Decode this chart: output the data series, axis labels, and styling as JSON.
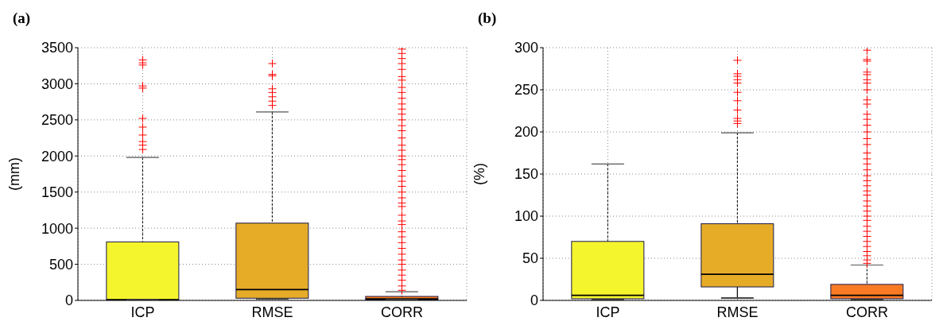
{
  "chart_data": [
    {
      "type": "box",
      "title": "(a)",
      "ylabel": "(mm)",
      "categories": [
        "ICP",
        "RMSE",
        "CORR"
      ],
      "colors": [
        "#f5f52e",
        "#e6ac28",
        "#fb7b24"
      ],
      "ylim": [
        0,
        3500
      ],
      "yticks": [
        0,
        500,
        1000,
        1500,
        2000,
        2500,
        3000,
        3500
      ],
      "grid": true,
      "marker": "cross",
      "boxes": [
        {
          "low": 0,
          "q1": 5,
          "median": 10,
          "q3": 810,
          "high": 1980,
          "outliers": [
            2090,
            2150,
            2200,
            2290,
            2400,
            2520,
            2940,
            2970,
            3260,
            3290,
            3330
          ]
        },
        {
          "low": 10,
          "q1": 30,
          "median": 150,
          "q3": 1070,
          "high": 2610,
          "outliers": [
            2700,
            2760,
            2820,
            2880,
            2930,
            3110,
            3130,
            3280
          ]
        },
        {
          "low": 0,
          "q1": 5,
          "median": 20,
          "q3": 55,
          "high": 120,
          "outliers": [
            140,
            200,
            280,
            350,
            420,
            500,
            560,
            640,
            720,
            800,
            880,
            950,
            1050,
            1100,
            1180,
            1300,
            1350,
            1420,
            1500,
            1580,
            1650,
            1720,
            1800,
            1880,
            1950,
            2000,
            2080,
            2150,
            2250,
            2350,
            2420,
            2500,
            2580,
            2650,
            2720,
            2800,
            2880,
            2950,
            3050,
            3100,
            3200,
            3280,
            3350,
            3420,
            3480
          ]
        }
      ]
    },
    {
      "type": "box",
      "title": "(b)",
      "ylabel": "(%)",
      "categories": [
        "ICP",
        "RMSE",
        "CORR"
      ],
      "colors": [
        "#f5f52e",
        "#e6ac28",
        "#fb7b24"
      ],
      "ylim": [
        0,
        300
      ],
      "yticks": [
        0,
        50,
        100,
        150,
        200,
        250,
        300
      ],
      "grid": true,
      "marker": "cross",
      "boxes": [
        {
          "low": 0,
          "q1": 2,
          "median": 6,
          "q3": 70,
          "high": 162
        },
        {
          "low": 2,
          "q1": 16,
          "median": 31,
          "q3": 91,
          "high": 199,
          "outliers": [
            210,
            213,
            216,
            226,
            237,
            247,
            258,
            262,
            266,
            269,
            285
          ]
        },
        {
          "low": 0,
          "q1": 2,
          "median": 6,
          "q3": 19,
          "high": 42,
          "outliers": [
            44,
            48,
            53,
            58,
            64,
            70,
            76,
            82,
            88,
            95,
            100,
            106,
            112,
            118,
            125,
            130,
            136,
            142,
            148,
            155,
            162,
            168,
            175,
            185,
            192,
            200,
            208,
            215,
            221,
            233,
            238,
            250,
            258,
            262,
            268,
            271,
            284,
            286,
            297
          ]
        }
      ]
    }
  ]
}
